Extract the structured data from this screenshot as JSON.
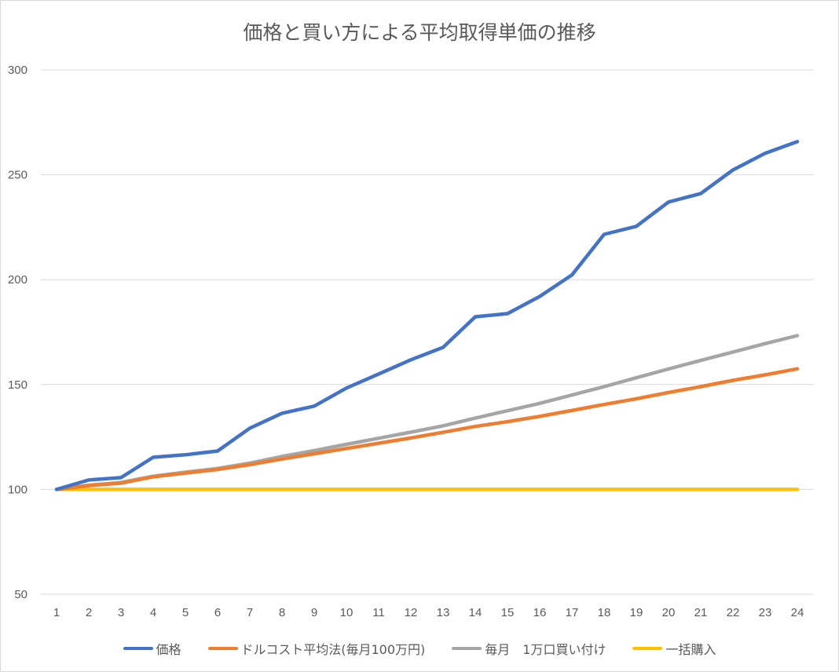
{
  "chart_data": {
    "type": "line",
    "title": "価格と買い方による平均取得単価の推移",
    "categories": [
      "1",
      "2",
      "3",
      "4",
      "5",
      "6",
      "7",
      "8",
      "9",
      "10",
      "11",
      "12",
      "13",
      "14",
      "15",
      "16",
      "17",
      "18",
      "19",
      "20",
      "21",
      "22",
      "23",
      "24"
    ],
    "ylim": [
      50,
      300
    ],
    "yticks": [
      "50",
      "100",
      "150",
      "200",
      "250",
      "300"
    ],
    "grid": true,
    "legend": "bottom",
    "series": [
      {
        "name": "価格",
        "color": "#4472c4",
        "values": [
          100,
          104.5,
          105.6,
          115.3,
          116.5,
          118.3,
          129.2,
          136.3,
          139.7,
          148.3,
          155,
          161.8,
          167.7,
          182.3,
          183.8,
          192,
          202.2,
          221.6,
          225.4,
          237,
          241,
          252.3,
          260.2,
          265.8
        ]
      },
      {
        "name": "ドルコスト平均法(毎月100万円)",
        "color": "#ed7d31",
        "values": [
          100,
          101.8,
          103,
          106,
          107.8,
          109.5,
          111.8,
          114.5,
          117,
          119.5,
          122,
          124.5,
          127.2,
          130,
          132.3,
          134.8,
          137.6,
          140.5,
          143.2,
          146.2,
          149,
          152,
          154.6,
          157.5
        ]
      },
      {
        "name": "毎月　1万口買い付け",
        "color": "#a5a5a5",
        "values": [
          100,
          102,
          103.3,
          106.3,
          108.2,
          110,
          112.5,
          115.7,
          118.5,
          121.5,
          124.4,
          127.3,
          130.3,
          134,
          137.5,
          141,
          145,
          149,
          153.2,
          157.4,
          161.5,
          165.5,
          169.5,
          173.3
        ]
      },
      {
        "name": "一括購入",
        "color": "#ffc000",
        "values": [
          100,
          100,
          100,
          100,
          100,
          100,
          100,
          100,
          100,
          100,
          100,
          100,
          100,
          100,
          100,
          100,
          100,
          100,
          100,
          100,
          100,
          100,
          100,
          100
        ]
      }
    ]
  }
}
